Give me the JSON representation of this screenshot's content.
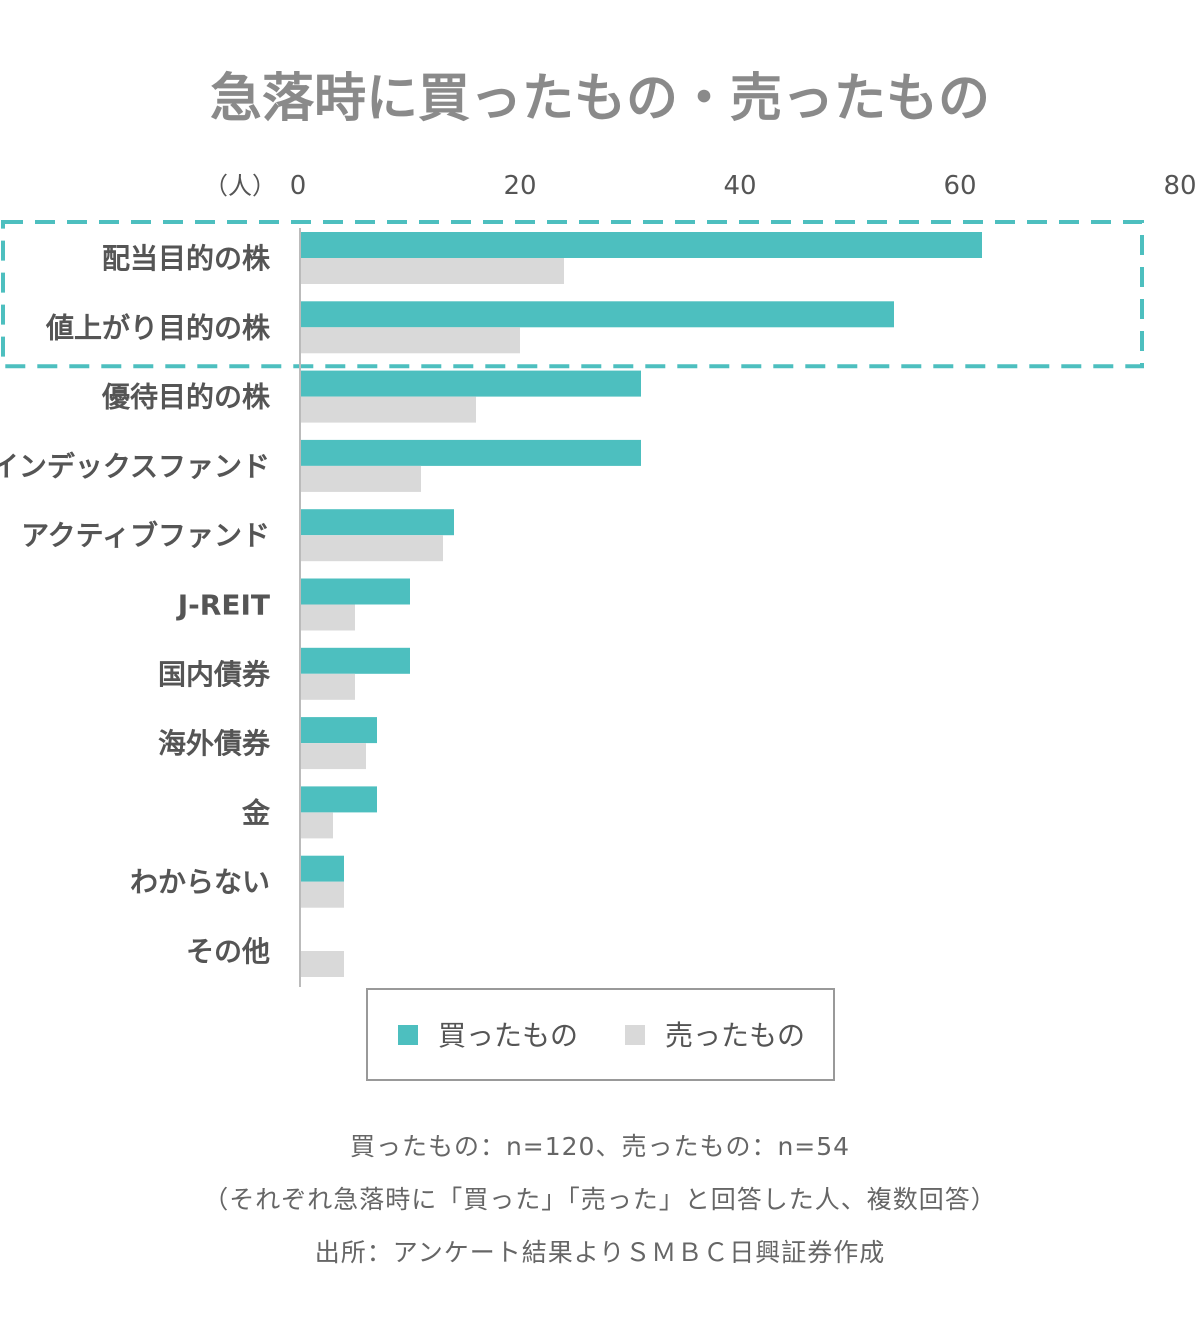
{
  "chart_data": {
    "type": "bar",
    "orientation": "horizontal",
    "title": "急落時に買ったもの・売ったもの",
    "unit_label": "（人）",
    "xlim": [
      0,
      80
    ],
    "xticks": [
      "0",
      "20",
      "40",
      "60",
      "80"
    ],
    "categories": [
      "配当目的の株",
      "値上がり目的の株",
      "優待目的の株",
      "インデックスファンド",
      "アクティブファンド",
      "J-REIT",
      "国内債券",
      "海外債券",
      "金",
      "わからない",
      "その他"
    ],
    "series": [
      {
        "name": "買ったもの",
        "color": "#4dbfbf",
        "values": [
          62,
          54,
          31,
          31,
          14,
          10,
          10,
          7,
          7,
          4,
          0
        ]
      },
      {
        "name": "売ったもの",
        "color": "#d9d9d9",
        "values": [
          24,
          20,
          16,
          11,
          13,
          5,
          5,
          6,
          3,
          4,
          4
        ]
      }
    ],
    "highlight": {
      "categories": [
        "配当目的の株",
        "値上がり目的の株"
      ],
      "style": "dashed-box",
      "color": "#4dbfbf"
    },
    "legend": "bottom-center",
    "grid": false
  },
  "notes": {
    "line1": "買ったもの：n=120、売ったもの：n=54",
    "line2": "（それぞれ急落時に「買った」「売った」と回答した人、複数回答）",
    "line3": "出所：アンケート結果よりＳＭＢＣ日興証券作成"
  }
}
